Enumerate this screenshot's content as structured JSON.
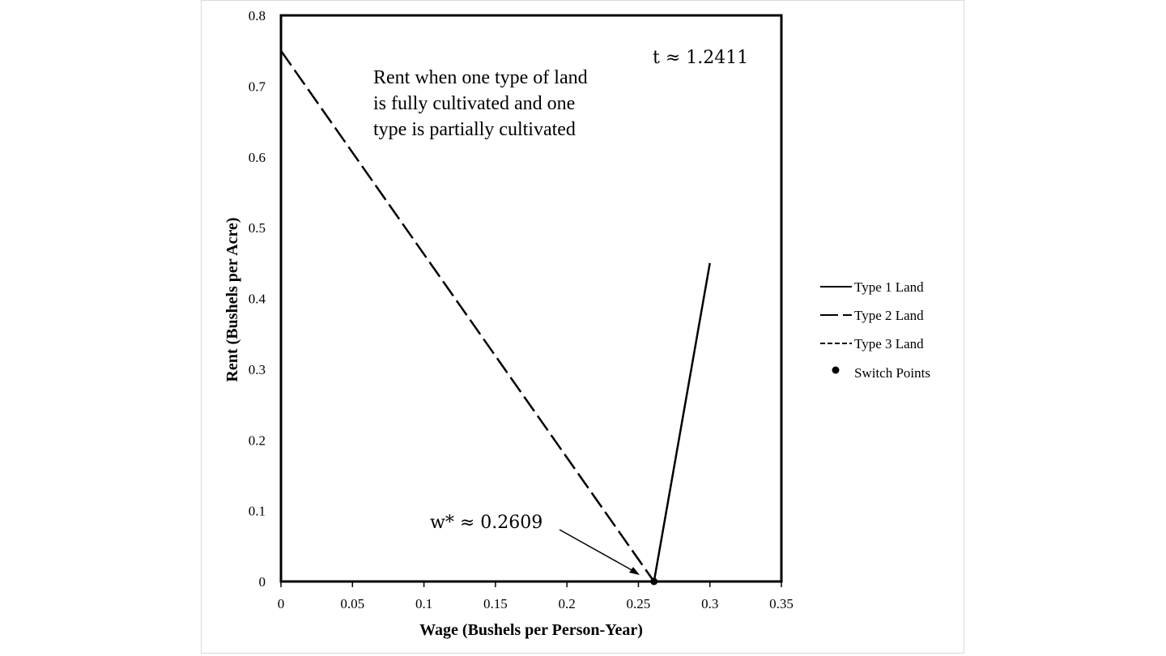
{
  "chart_data": {
    "type": "line",
    "xlabel": "Wage (Bushels per Person-Year)",
    "ylabel": "Rent (Bushels per Acre)",
    "xlim": [
      0,
      0.35
    ],
    "ylim": [
      0,
      0.8
    ],
    "xticks": [
      0,
      0.05,
      0.1,
      0.15,
      0.2,
      0.25,
      0.3,
      0.35
    ],
    "xtick_labels": [
      "0",
      "0.05",
      "0.1",
      "0.15",
      "0.2",
      "0.25",
      "0.3",
      "0.35"
    ],
    "yticks": [
      0,
      0.1,
      0.2,
      0.3,
      0.4,
      0.5,
      0.6,
      0.7,
      0.8
    ],
    "ytick_labels": [
      "0",
      "0.1",
      "0.2",
      "0.3",
      "0.4",
      "0.5",
      "0.6",
      "0.7",
      "0.8"
    ],
    "grid": false,
    "legend_position": "right",
    "series": [
      {
        "name": "Type 1 Land",
        "style": "solid",
        "x": [
          0.2609,
          0.3
        ],
        "y": [
          0,
          0.45
        ]
      },
      {
        "name": "Type 2 Land",
        "style": "long-dash",
        "x": [
          0,
          0.2609
        ],
        "y": [
          0.75,
          0
        ]
      },
      {
        "name": "Type 3 Land",
        "style": "short-dash",
        "x": [],
        "y": []
      }
    ],
    "points": {
      "name": "Switch Points",
      "x": [
        0.2609
      ],
      "y": [
        0
      ]
    },
    "annotations": {
      "t_label": "t ≈ 1.2411",
      "w_label": "w* ≈ 0.2609",
      "region_text": [
        "Rent when one type of land",
        "is fully cultivated and one",
        "type is partially cultivated"
      ]
    }
  },
  "legend": {
    "items": [
      "Type 1 Land",
      "Type 2 Land",
      "Type 3 Land",
      "Switch Points"
    ]
  },
  "colors": {
    "line": "#000000",
    "frame_border": "#d9d9d9"
  }
}
